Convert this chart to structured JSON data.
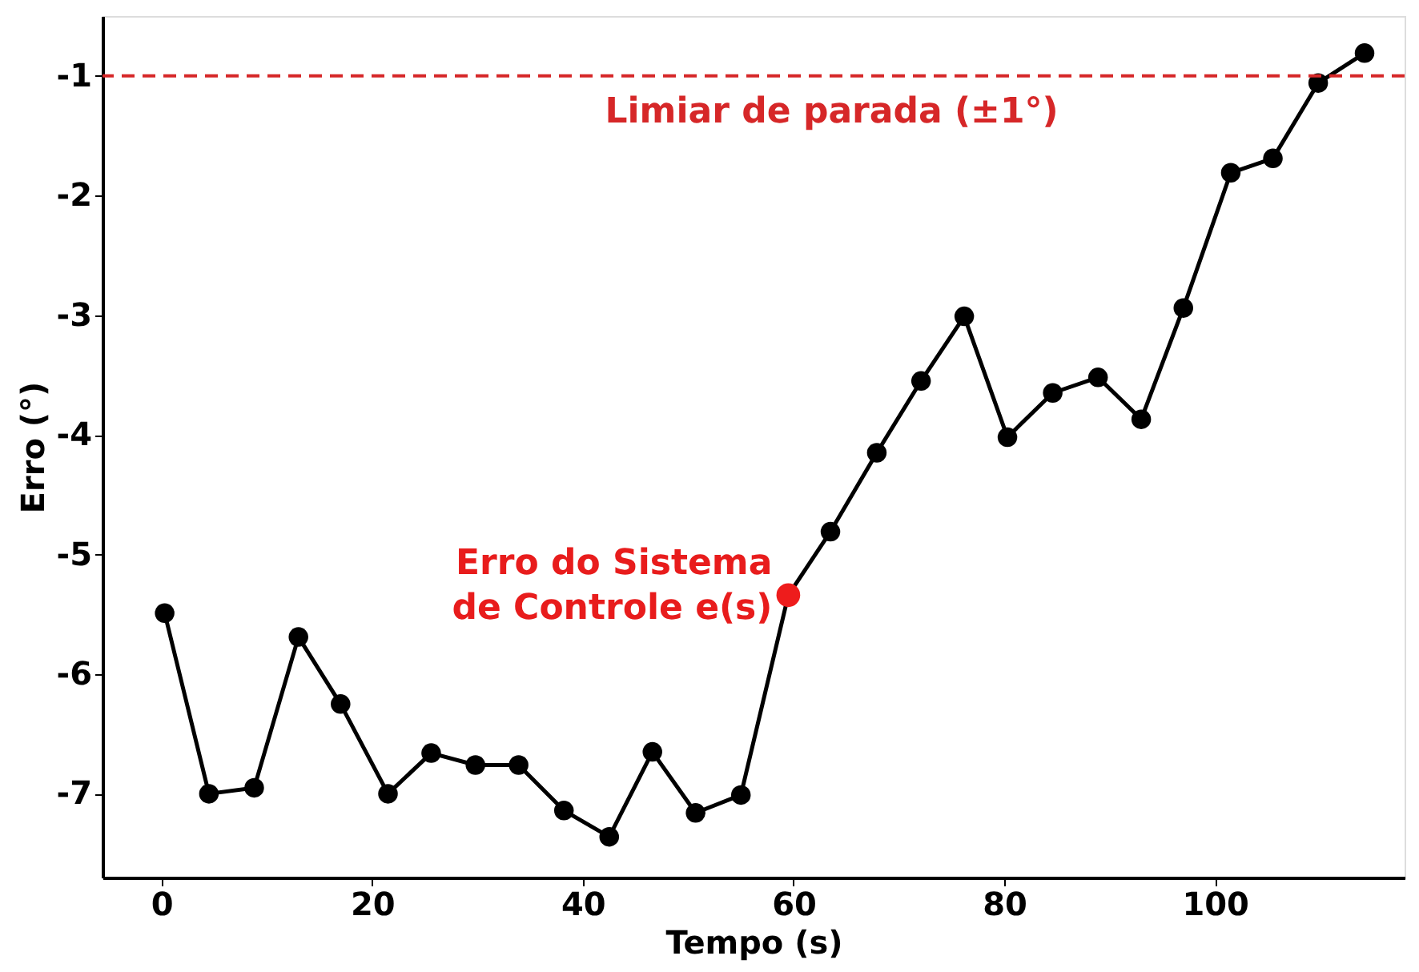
{
  "chart_data": {
    "type": "line",
    "xlabel": "Tempo (s)",
    "ylabel": "Erro (°)",
    "xlim": [
      -5.6,
      118
    ],
    "ylim": [
      -7.7,
      -0.5
    ],
    "xticks": [
      0,
      20,
      40,
      60,
      80,
      100
    ],
    "yticks": [
      -7,
      -6,
      -5,
      -4,
      -3,
      -2,
      -1
    ],
    "marker": "circle",
    "line_style": "solid",
    "series": [
      {
        "color": "#000000",
        "x": [
          0.3,
          4.5,
          8.8,
          13,
          17,
          21.5,
          25.6,
          29.8,
          33.9,
          38.2,
          42.5,
          46.6,
          50.7,
          55,
          59.5,
          63.5,
          67.9,
          72.1,
          76.2,
          80.3,
          84.6,
          88.9,
          93,
          97,
          101.5,
          105.5,
          109.8,
          114.2
        ],
        "values": [
          -5.49,
          -7.0,
          -6.95,
          -5.69,
          -6.25,
          -7.0,
          -6.66,
          -6.76,
          -6.76,
          -7.14,
          -7.36,
          -6.65,
          -7.16,
          -7.01,
          -5.34,
          -4.81,
          -4.15,
          -3.55,
          -3.01,
          -4.02,
          -3.65,
          -3.52,
          -3.87,
          -2.94,
          -1.81,
          -1.69,
          -1.06,
          -0.81
        ]
      },
      {
        "type": "scatter",
        "color": "#ee1c1c",
        "x": [
          59.5
        ],
        "values": [
          -5.34
        ]
      }
    ],
    "ref_lines": [
      {
        "axis": "y",
        "value": -1,
        "label": "Limiar de parada (±1°)",
        "color": "#d62728",
        "line_style": "dashed"
      }
    ],
    "annotations": [
      {
        "text": "Erro do Sistema\nde Controle e(s)",
        "x": 59.5,
        "y": -5.34
      }
    ]
  }
}
